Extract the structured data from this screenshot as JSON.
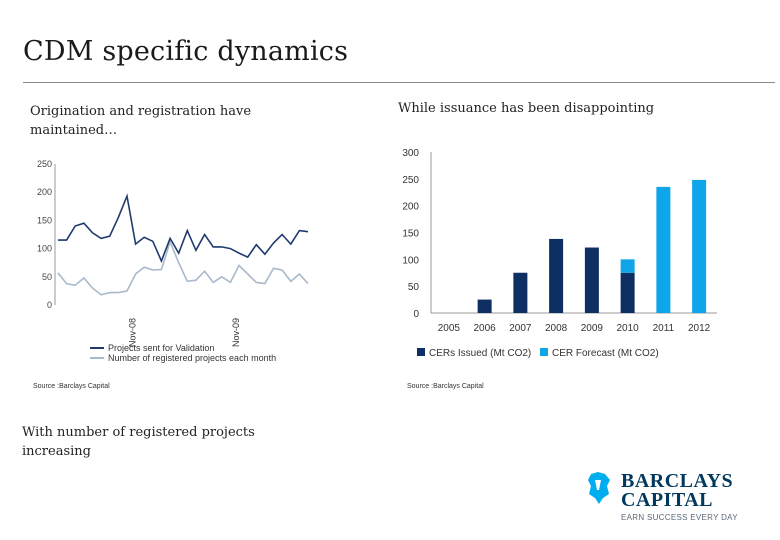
{
  "slide": {
    "title": "CDM specific dynamics",
    "left_subtitle": "Origination and registration have maintained…",
    "right_subtitle": "While issuance has been disappointing",
    "left_source": "Source :Barclays Capital",
    "right_source": "Source :Barclays Capital",
    "bottom_text": "With number of registered projects increasing"
  },
  "logo": {
    "line1": "BARCLAYS",
    "line2": "CAPITAL",
    "tagline": "EARN SUCCESS EVERY DAY",
    "color": "#00395d",
    "accent": "#00aeef"
  },
  "chart_data": [
    {
      "type": "line",
      "ylim": [
        0,
        250
      ],
      "yticks": [
        "250",
        "200",
        "150",
        "100",
        "50",
        "0"
      ],
      "xtick_labels": [
        "Nov-08",
        "Nov-09"
      ],
      "grid": false,
      "legend": "bottom",
      "series": [
        {
          "name": "Projects sent for Validation",
          "color": "#1f3a6e",
          "values": [
            115,
            115,
            140,
            145,
            128,
            118,
            122,
            155,
            193,
            108,
            120,
            113,
            78,
            118,
            92,
            132,
            97,
            125,
            103,
            103,
            100,
            92,
            85,
            107,
            90,
            110,
            125,
            108,
            132,
            130
          ]
        },
        {
          "name": "Number of registered projects each month",
          "color": "#a9b9cb",
          "values": [
            57,
            38,
            35,
            48,
            30,
            18,
            22,
            22,
            25,
            55,
            67,
            62,
            63,
            112,
            75,
            42,
            44,
            60,
            40,
            50,
            40,
            70,
            55,
            40,
            38,
            65,
            62,
            42,
            55,
            38
          ]
        }
      ]
    },
    {
      "type": "bar",
      "categories": [
        "2005",
        "2006",
        "2007",
        "2008",
        "2009",
        "2010",
        "2011",
        "2012"
      ],
      "ylim": [
        0,
        300
      ],
      "yticks": [
        "300",
        "250",
        "200",
        "150",
        "100",
        "50",
        "0"
      ],
      "grid": false,
      "legend": "bottom",
      "series": [
        {
          "name": "CERs Issued (Mt CO2)",
          "color": "#0d2f62",
          "values": [
            0,
            25,
            75,
            138,
            122,
            75,
            0,
            0
          ]
        },
        {
          "name": "CER Forecast (Mt CO2)",
          "color": "#0ea5e9",
          "values": [
            0,
            0,
            0,
            0,
            0,
            25,
            235,
            248
          ]
        }
      ]
    }
  ]
}
